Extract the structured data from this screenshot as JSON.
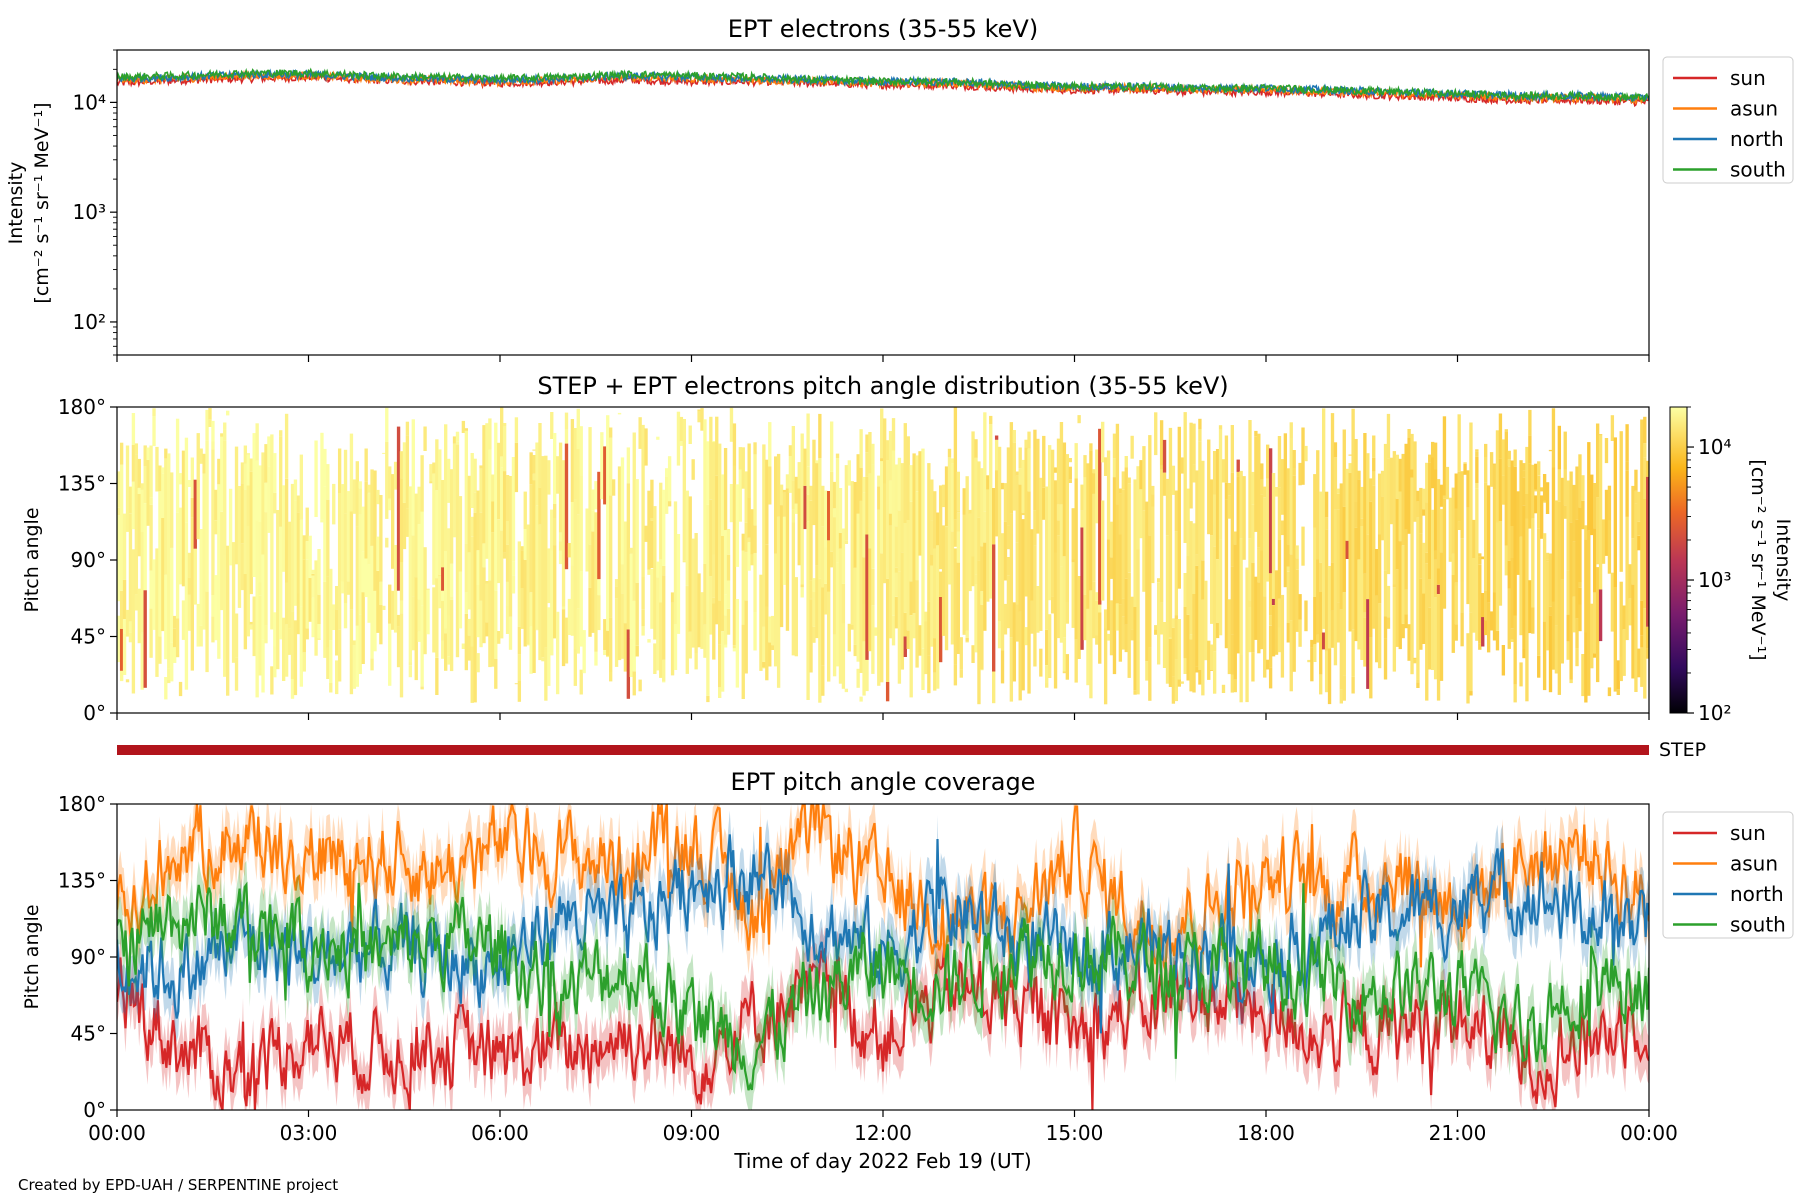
{
  "figure_credit": "Created by EPD-UAH / SERPENTINE project",
  "colors": {
    "sun": "#d62728",
    "asun": "#ff7f0e",
    "north": "#1f77b4",
    "south": "#2ca02c",
    "step_bar": "#b2141c"
  },
  "chart_data": [
    {
      "type": "line",
      "title": "EPT electrons (35-55 keV)",
      "ylabel_line1": "Intensity",
      "ylabel_line2": "[cm⁻² s⁻¹ sr⁻¹ MeV⁻¹]",
      "yscale": "log",
      "ylim": [
        50,
        30000
      ],
      "y_ticks": [
        {
          "value": 100,
          "label": "10²"
        },
        {
          "value": 1000,
          "label": "10³"
        },
        {
          "value": 10000,
          "label": "10⁴"
        }
      ],
      "x_range_hours": [
        0,
        24
      ],
      "legend_position": "right",
      "series": [
        {
          "name": "sun",
          "color_key": "sun",
          "hours": [
            0,
            1,
            2,
            3,
            4,
            5,
            6,
            7,
            8,
            9,
            10,
            11,
            12,
            13,
            14,
            15,
            16,
            17,
            18,
            19,
            20,
            21,
            22,
            23,
            24
          ],
          "values": [
            15000,
            16000,
            16500,
            17000,
            16000,
            15500,
            15000,
            15500,
            16000,
            15500,
            15500,
            15000,
            14500,
            14500,
            13500,
            13000,
            13000,
            12500,
            12500,
            12000,
            11500,
            11000,
            10500,
            10500,
            10000
          ]
        },
        {
          "name": "asun",
          "color_key": "asun",
          "hours": [
            0,
            1,
            2,
            3,
            4,
            5,
            6,
            7,
            8,
            9,
            10,
            11,
            12,
            13,
            14,
            15,
            16,
            17,
            18,
            19,
            20,
            21,
            22,
            23,
            24
          ],
          "values": [
            16000,
            16500,
            17500,
            17500,
            16500,
            16000,
            15500,
            16000,
            17000,
            16500,
            16000,
            15500,
            15000,
            15000,
            14000,
            13500,
            13500,
            13000,
            13000,
            12500,
            12000,
            11500,
            11000,
            11000,
            10500
          ]
        },
        {
          "name": "north",
          "color_key": "north",
          "hours": [
            0,
            1,
            2,
            3,
            4,
            5,
            6,
            7,
            8,
            9,
            10,
            11,
            12,
            13,
            14,
            15,
            16,
            17,
            18,
            19,
            20,
            21,
            22,
            23,
            24
          ],
          "values": [
            16500,
            17000,
            18000,
            18000,
            17000,
            16500,
            16000,
            16500,
            17500,
            17000,
            16500,
            16000,
            15500,
            15500,
            14500,
            14000,
            14000,
            13500,
            13500,
            13000,
            12500,
            12000,
            11500,
            11500,
            11000
          ]
        },
        {
          "name": "south",
          "color_key": "south",
          "hours": [
            0,
            1,
            2,
            3,
            4,
            5,
            6,
            7,
            8,
            9,
            10,
            11,
            12,
            13,
            14,
            15,
            16,
            17,
            18,
            19,
            20,
            21,
            22,
            23,
            24
          ],
          "values": [
            17000,
            17500,
            18500,
            18500,
            17500,
            17000,
            16500,
            17000,
            18000,
            17500,
            17000,
            16000,
            15500,
            15500,
            14500,
            14000,
            14000,
            13500,
            13500,
            13000,
            12500,
            12000,
            11500,
            11500,
            11000
          ]
        }
      ]
    },
    {
      "type": "heatmap",
      "title": "STEP + EPT electrons pitch angle distribution (35-55 keV)",
      "ylabel": "Pitch angle",
      "ylim": [
        0,
        180
      ],
      "y_ticks": [
        {
          "value": 0,
          "label": "0°"
        },
        {
          "value": 45,
          "label": "45°"
        },
        {
          "value": 90,
          "label": "90°"
        },
        {
          "value": 135,
          "label": "135°"
        },
        {
          "value": 180,
          "label": "180°"
        }
      ],
      "x_range_hours": [
        0,
        24
      ],
      "colorbar": {
        "label_line1": "Intensity",
        "label_line2": "[cm⁻² s⁻¹ sr⁻¹ MeV⁻¹]",
        "scale": "log",
        "range": [
          100,
          20000
        ],
        "ticks": [
          {
            "value": 100,
            "label": "10²"
          },
          {
            "value": 1000,
            "label": "10³"
          },
          {
            "value": 10000,
            "label": "10⁴"
          }
        ]
      },
      "intensity_trend": {
        "hours": [
          0,
          3,
          6,
          9,
          12,
          15,
          18,
          21,
          24
        ],
        "values": [
          17000,
          17500,
          16000,
          16500,
          15000,
          13500,
          12500,
          11500,
          10500
        ]
      }
    },
    {
      "type": "bar",
      "label": "STEP",
      "x_range_hours": [
        0,
        24
      ],
      "color_key": "step_bar"
    },
    {
      "type": "line",
      "title": "EPT pitch angle coverage",
      "ylabel": "Pitch angle",
      "xlabel": "Time of day 2022 Feb 19 (UT)",
      "ylim": [
        0,
        180
      ],
      "y_ticks": [
        {
          "value": 0,
          "label": "0°"
        },
        {
          "value": 45,
          "label": "45°"
        },
        {
          "value": 90,
          "label": "90°"
        },
        {
          "value": 135,
          "label": "135°"
        },
        {
          "value": 180,
          "label": "180°"
        }
      ],
      "x_range_hours": [
        0,
        24
      ],
      "x_ticks": [
        {
          "value": 0,
          "label": "00:00"
        },
        {
          "value": 3,
          "label": "03:00"
        },
        {
          "value": 6,
          "label": "06:00"
        },
        {
          "value": 9,
          "label": "09:00"
        },
        {
          "value": 12,
          "label": "12:00"
        },
        {
          "value": 15,
          "label": "15:00"
        },
        {
          "value": 18,
          "label": "18:00"
        },
        {
          "value": 21,
          "label": "21:00"
        },
        {
          "value": 24,
          "label": "00:00"
        }
      ],
      "legend_position": "right",
      "series": [
        {
          "name": "sun",
          "color_key": "sun",
          "hours": [
            0,
            1,
            2,
            3,
            4,
            5,
            6,
            7,
            8,
            9,
            10,
            11,
            12,
            13,
            14,
            15,
            16,
            17,
            18,
            19,
            20,
            21,
            22,
            23,
            24
          ],
          "values": [
            75,
            35,
            20,
            45,
            35,
            40,
            30,
            35,
            45,
            30,
            55,
            70,
            45,
            70,
            65,
            45,
            60,
            70,
            55,
            45,
            45,
            55,
            30,
            40,
            60
          ]
        },
        {
          "name": "asun",
          "color_key": "asun",
          "hours": [
            0,
            1,
            2,
            3,
            4,
            5,
            6,
            7,
            8,
            9,
            10,
            11,
            12,
            13,
            14,
            15,
            16,
            17,
            18,
            19,
            20,
            21,
            22,
            23,
            24
          ],
          "values": [
            110,
            155,
            160,
            150,
            150,
            140,
            155,
            150,
            145,
            160,
            115,
            165,
            130,
            115,
            110,
            150,
            110,
            115,
            140,
            130,
            140,
            120,
            145,
            155,
            120
          ]
        },
        {
          "name": "north",
          "color_key": "north",
          "hours": [
            0,
            1,
            2,
            3,
            4,
            5,
            6,
            7,
            8,
            9,
            10,
            11,
            12,
            13,
            14,
            15,
            16,
            17,
            18,
            19,
            20,
            21,
            22,
            23,
            24
          ],
          "values": [
            90,
            80,
            100,
            90,
            95,
            90,
            85,
            115,
            105,
            135,
            140,
            110,
            90,
            120,
            100,
            90,
            95,
            95,
            90,
            105,
            115,
            120,
            130,
            115,
            105
          ]
        },
        {
          "name": "south",
          "color_key": "south",
          "hours": [
            0,
            1,
            2,
            3,
            4,
            5,
            6,
            7,
            8,
            9,
            10,
            11,
            12,
            13,
            14,
            15,
            16,
            17,
            18,
            19,
            20,
            21,
            22,
            23,
            24
          ],
          "values": [
            95,
            115,
            110,
            105,
            90,
            100,
            95,
            70,
            85,
            55,
            40,
            70,
            85,
            75,
            95,
            95,
            85,
            80,
            85,
            75,
            70,
            70,
            45,
            75,
            75
          ]
        }
      ]
    }
  ]
}
